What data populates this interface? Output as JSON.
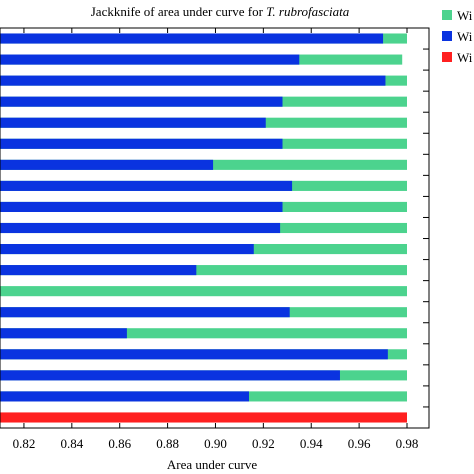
{
  "chart_data": {
    "type": "bar",
    "orientation": "horizontal",
    "title_prefix": "Jackknife of area under curve for ",
    "title_species": "T. rubrofasciata",
    "xlabel": "Area under curve",
    "ylabel": "",
    "xlim": [
      0.81,
      0.98
    ],
    "x_ticks": [
      "0.82",
      "0.84",
      "0.86",
      "0.88",
      "0.90",
      "0.92",
      "0.94",
      "0.96",
      "0.98"
    ],
    "x_tick_values": [
      0.82,
      0.84,
      0.86,
      0.88,
      0.9,
      0.92,
      0.94,
      0.96,
      0.98
    ],
    "legend_position": "right",
    "legend": [
      {
        "label": "Wi",
        "color": "#4cd38e"
      },
      {
        "label": "Wi",
        "color": "#0a33e0"
      },
      {
        "label": "Wi",
        "color": "#ff2020"
      }
    ],
    "rows": [
      {
        "without": 0.98,
        "with_only": 0.97
      },
      {
        "without": 0.978,
        "with_only": 0.935
      },
      {
        "without": 0.98,
        "with_only": 0.971
      },
      {
        "without": 0.98,
        "with_only": 0.928
      },
      {
        "without": 0.98,
        "with_only": 0.921
      },
      {
        "without": 0.98,
        "with_only": 0.928
      },
      {
        "without": 0.98,
        "with_only": 0.899
      },
      {
        "without": 0.98,
        "with_only": 0.932
      },
      {
        "without": 0.98,
        "with_only": 0.928
      },
      {
        "without": 0.98,
        "with_only": 0.927
      },
      {
        "without": 0.98,
        "with_only": 0.916
      },
      {
        "without": 0.98,
        "with_only": 0.892
      },
      {
        "without": 0.98,
        "with_only": null
      },
      {
        "without": 0.98,
        "with_only": 0.931
      },
      {
        "without": 0.98,
        "with_only": 0.863
      },
      {
        "without": 0.98,
        "with_only": 0.972
      },
      {
        "without": 0.98,
        "with_only": 0.952
      },
      {
        "without": 0.98,
        "with_only": 0.914
      }
    ],
    "all_variables": 0.98
  }
}
